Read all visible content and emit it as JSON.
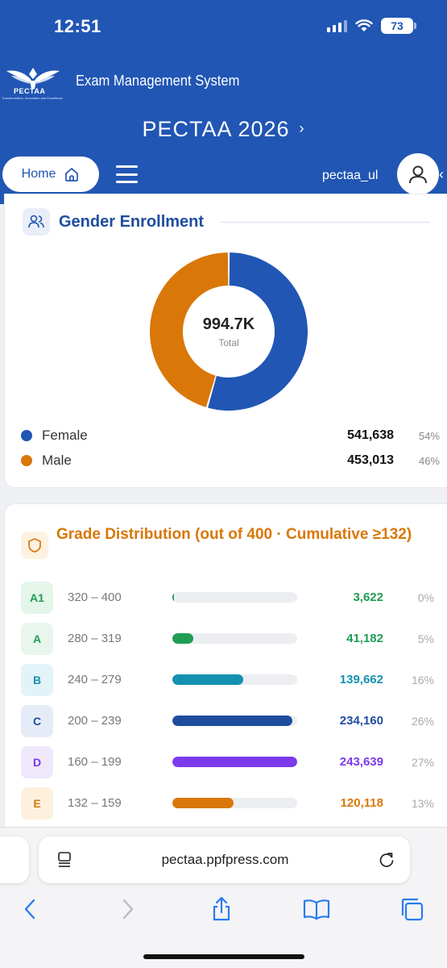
{
  "status": {
    "time": "12:51",
    "battery": "73"
  },
  "header": {
    "logo_text": "PECTAA",
    "logo_tagline": "Transformation, Innovation and Excellence",
    "system_title": "Exam Management System",
    "exam_title": "PECTAA 2026",
    "home_label": "Home",
    "username": "pectaa_ul"
  },
  "gender": {
    "title": "Gender Enrollment",
    "total": "994.7K",
    "total_label": "Total",
    "items": [
      {
        "name": "Female",
        "value": "541,638",
        "pct": "54%",
        "color": "#2156b4",
        "share": 0.5445
      },
      {
        "name": "Male",
        "value": "453,013",
        "pct": "46%",
        "color": "#d97708",
        "share": 0.4555
      }
    ]
  },
  "grades": {
    "title": "Grade Distribution (out of 400 · Cumulative ≥132)",
    "items": [
      {
        "grade": "A1",
        "range": "320 – 400",
        "count": "3,622",
        "pct": "0%",
        "fill": 0.01,
        "color": "#1f9d55",
        "badge_bg": "#e4f5ea"
      },
      {
        "grade": "A",
        "range": "280 – 319",
        "count": "41,182",
        "pct": "5%",
        "fill": 0.17,
        "color": "#1f9d55",
        "badge_bg": "#e8f6ee"
      },
      {
        "grade": "B",
        "range": "240 – 279",
        "count": "139,662",
        "pct": "16%",
        "fill": 0.57,
        "color": "#1490b0",
        "badge_bg": "#e2f4f8"
      },
      {
        "grade": "C",
        "range": "200 – 239",
        "count": "234,160",
        "pct": "26%",
        "fill": 0.96,
        "color": "#1f4d9e",
        "badge_bg": "#e6ecf7"
      },
      {
        "grade": "D",
        "range": "160 – 199",
        "count": "243,639",
        "pct": "27%",
        "fill": 1.0,
        "color": "#7c3aed",
        "badge_bg": "#efe8fb"
      },
      {
        "grade": "E",
        "range": "132 – 159",
        "count": "120,118",
        "pct": "13%",
        "fill": 0.49,
        "color": "#d97708",
        "badge_bg": "#fdf1de"
      }
    ]
  },
  "browser": {
    "url": "pectaa.ppfpress.com"
  }
}
